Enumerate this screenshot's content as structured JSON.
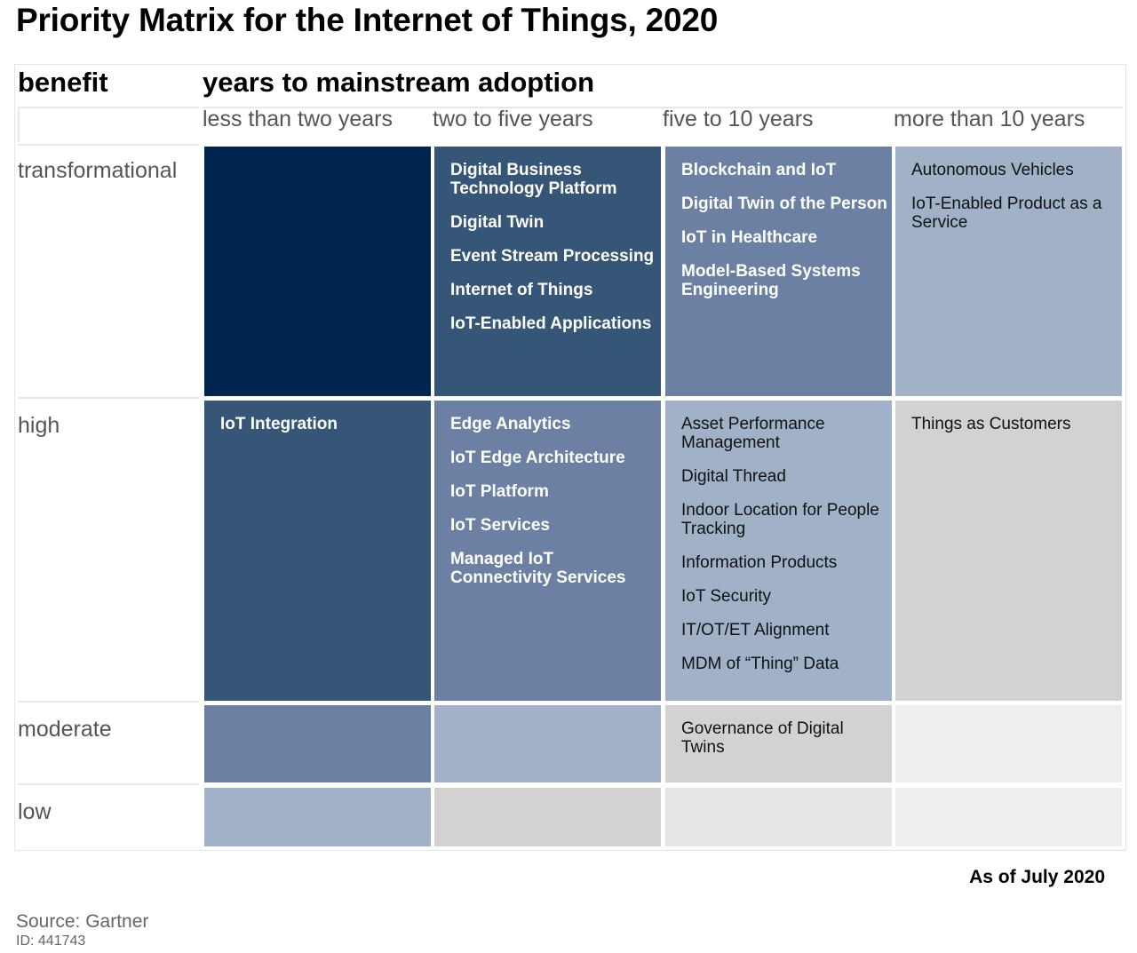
{
  "title": "Priority Matrix for the Internet of Things, 2020",
  "benefit_heading": "benefit",
  "years_heading": "years to mainstream adoption",
  "columns": [
    "less than two years",
    "two to five years",
    "five to 10 years",
    "more than 10 years"
  ],
  "rows": [
    "transformational",
    "high",
    "moderate",
    "low"
  ],
  "colors": {
    "darkest": "#00264f",
    "dark": "#365677",
    "medium": "#6b80a2",
    "light": "#a0b1c8",
    "gray": "#d2d2d2",
    "light_gray": "#e6e6e6",
    "lightest_gray": "#eeeeee"
  },
  "cells": {
    "transformational": [
      {
        "shade": "darkest",
        "items": []
      },
      {
        "shade": "dark",
        "items": [
          "Digital Business Technology Platform",
          "Digital Twin",
          "Event Stream Processing",
          "Internet of Things",
          "IoT-Enabled Applications"
        ]
      },
      {
        "shade": "medium",
        "items": [
          "Blockchain and IoT",
          "Digital Twin of the Person",
          "IoT in Healthcare",
          "Model-Based Systems Engineering"
        ]
      },
      {
        "shade": "light",
        "items": [
          "Autonomous Vehicles",
          "IoT-Enabled Product as a Service"
        ]
      }
    ],
    "high": [
      {
        "shade": "dark",
        "items": [
          "IoT Integration"
        ]
      },
      {
        "shade": "medium",
        "items": [
          "Edge Analytics",
          "IoT Edge Architecture",
          "IoT Platform",
          "IoT Services",
          "Managed IoT Connectivity Services"
        ]
      },
      {
        "shade": "light",
        "items": [
          "Asset Performance Management",
          "Digital Thread",
          "Indoor Location for People Tracking",
          "Information Products",
          "IoT Security",
          "IT/OT/ET Alignment",
          "MDM of “Thing” Data"
        ]
      },
      {
        "shade": "gray",
        "items": [
          "Things as Customers"
        ]
      }
    ],
    "moderate": [
      {
        "shade": "medium",
        "items": []
      },
      {
        "shade": "light",
        "items": []
      },
      {
        "shade": "gray",
        "items": [
          "Governance of Digital Twins"
        ]
      },
      {
        "shade": "lightest_gray",
        "items": []
      }
    ],
    "low": [
      {
        "shade": "light",
        "items": []
      },
      {
        "shade": "gray",
        "items": []
      },
      {
        "shade": "light_gray",
        "items": []
      },
      {
        "shade": "lightest_gray",
        "items": []
      }
    ]
  },
  "as_of": "As of July 2020",
  "source": "Source: Gartner",
  "doc_id": "ID: 441743"
}
